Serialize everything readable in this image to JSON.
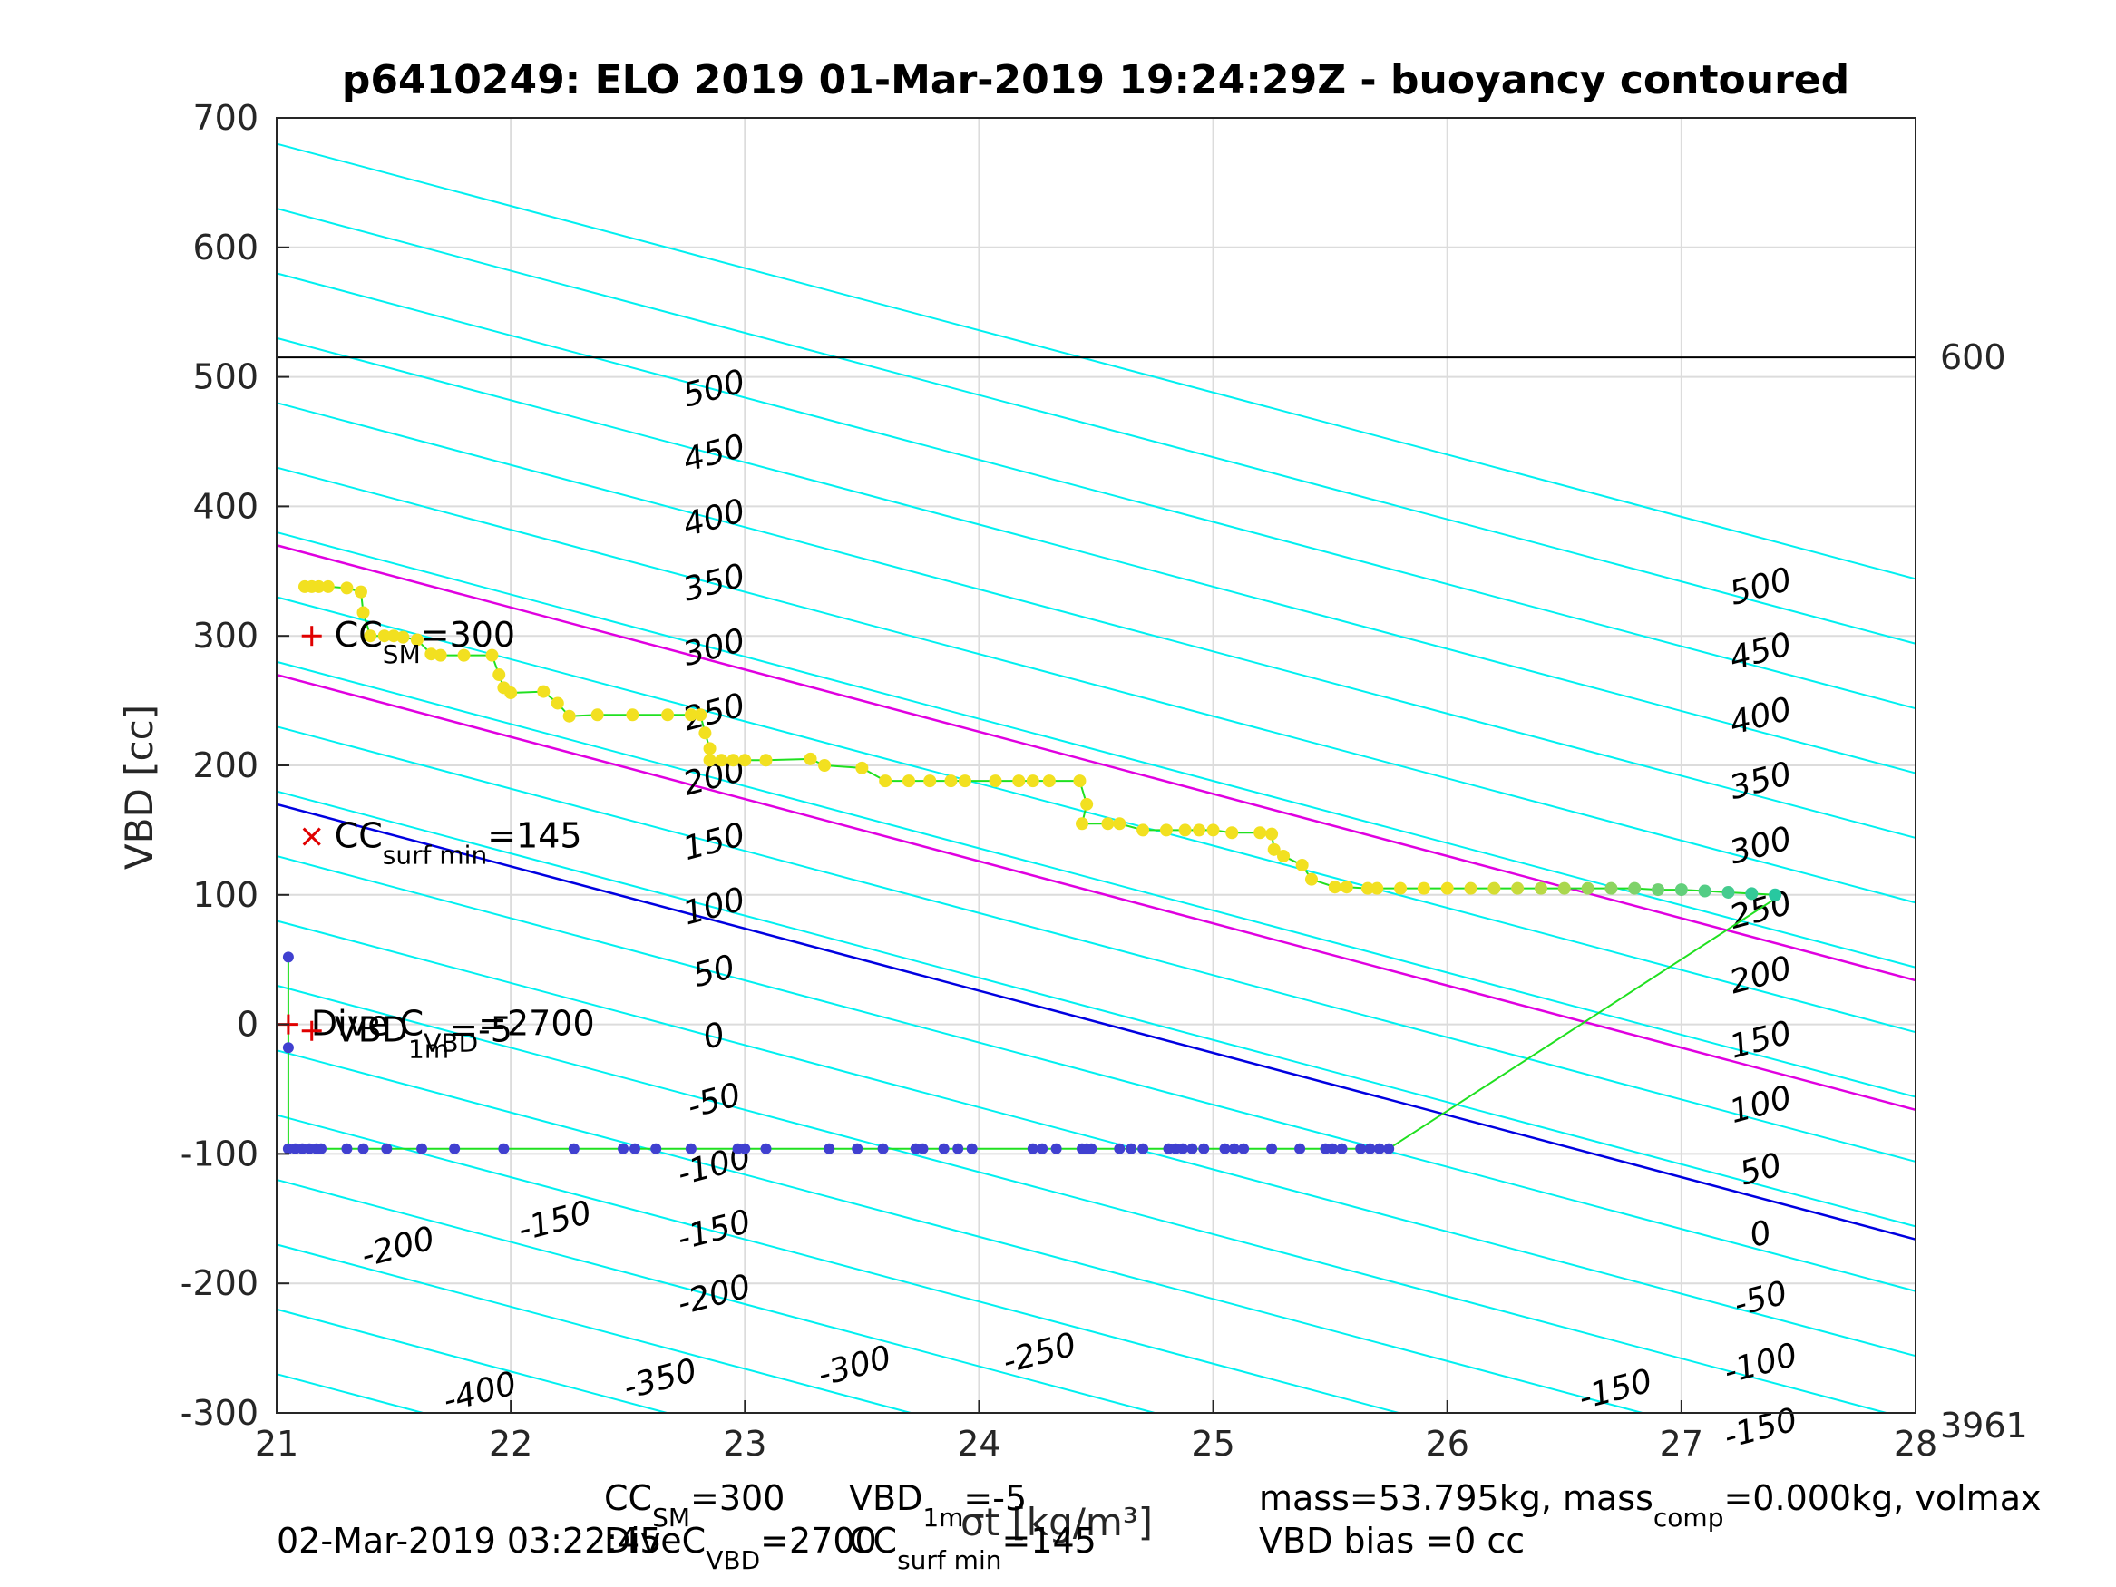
{
  "chart_data": {
    "type": "scatter",
    "title": "p6410249: ELO 2019 01-Mar-2019 19:24:29Z - buoyancy contoured",
    "xlabel": "σt [kg/m³]",
    "ylabel": "VBD [cc]",
    "xlim": [
      21,
      28
    ],
    "ylim": [
      -300,
      700
    ],
    "xticks": [
      21,
      22,
      23,
      24,
      25,
      26,
      27,
      28
    ],
    "yticks": [
      -300,
      -200,
      -100,
      0,
      100,
      200,
      300,
      400,
      500,
      600,
      700
    ],
    "grid": true,
    "right_labels": {
      "top": "600",
      "bottom": "3961"
    },
    "reference_line": {
      "vbd": 515
    },
    "buoyancy_contours": {
      "slope_cc_per_sigma": -48,
      "levels": [
        -400,
        -350,
        -300,
        -250,
        -200,
        -150,
        -100,
        -50,
        0,
        50,
        100,
        150,
        200,
        250,
        300,
        350,
        400,
        450,
        500
      ],
      "special_levels": {
        "0": "blue",
        "150": "magenta",
        "250": "magenta"
      },
      "intercepts_at_21": [
        -420,
        -370,
        -320,
        -270,
        -220,
        -170,
        -120,
        -70,
        -20,
        30,
        80,
        130,
        180,
        230,
        280,
        330,
        380,
        430,
        480,
        530,
        580,
        630,
        680
      ],
      "labels_left": [
        "500",
        "450",
        "400",
        "350",
        "300",
        "250",
        "200",
        "150",
        "100",
        "50",
        "0",
        "-50",
        "-100",
        "-150",
        "-200"
      ],
      "labels_right": [
        "500",
        "450",
        "400",
        "350",
        "300",
        "250",
        "200",
        "150",
        "100",
        "50",
        "0",
        "-50",
        "-100",
        "-150"
      ],
      "labels_bottom": [
        "-400",
        "-350",
        "-300",
        "-250"
      ]
    },
    "series": [
      {
        "name": "dive",
        "color": "#4040d0",
        "points": [
          [
            21.05,
            52
          ],
          [
            21.05,
            -18
          ],
          [
            21.05,
            -96
          ],
          [
            21.08,
            -96
          ],
          [
            21.11,
            -96
          ],
          [
            21.14,
            -96
          ],
          [
            21.17,
            -96
          ],
          [
            21.19,
            -96
          ],
          [
            21.3,
            -96
          ],
          [
            21.37,
            -96
          ],
          [
            21.47,
            -96
          ],
          [
            21.62,
            -96
          ],
          [
            21.76,
            -96
          ],
          [
            21.97,
            -96
          ],
          [
            22.27,
            -96
          ],
          [
            22.48,
            -96
          ],
          [
            22.53,
            -96
          ],
          [
            22.62,
            -96
          ],
          [
            22.77,
            -96
          ],
          [
            22.97,
            -96
          ],
          [
            23.0,
            -96
          ],
          [
            23.09,
            -96
          ],
          [
            23.36,
            -96
          ],
          [
            23.48,
            -96
          ],
          [
            23.59,
            -96
          ],
          [
            23.73,
            -96
          ],
          [
            23.76,
            -96
          ],
          [
            23.85,
            -96
          ],
          [
            23.91,
            -96
          ],
          [
            23.97,
            -96
          ],
          [
            24.23,
            -96
          ],
          [
            24.27,
            -96
          ],
          [
            24.33,
            -96
          ],
          [
            24.44,
            -96
          ],
          [
            24.46,
            -96
          ],
          [
            24.48,
            -96
          ],
          [
            24.6,
            -96
          ],
          [
            24.65,
            -96
          ],
          [
            24.7,
            -96
          ],
          [
            24.81,
            -96
          ],
          [
            24.84,
            -96
          ],
          [
            24.87,
            -96
          ],
          [
            24.91,
            -96
          ],
          [
            24.96,
            -96
          ],
          [
            25.05,
            -96
          ],
          [
            25.09,
            -96
          ],
          [
            25.13,
            -96
          ],
          [
            25.25,
            -96
          ],
          [
            25.37,
            -96
          ],
          [
            25.48,
            -96
          ],
          [
            25.51,
            -96
          ],
          [
            25.55,
            -96
          ],
          [
            25.63,
            -96
          ],
          [
            25.67,
            -96
          ],
          [
            25.71,
            -96
          ],
          [
            25.75,
            -96
          ]
        ]
      },
      {
        "name": "climb",
        "color": "#f2e020",
        "points": [
          [
            21.12,
            338
          ],
          [
            21.15,
            338
          ],
          [
            21.18,
            338
          ],
          [
            21.22,
            338
          ],
          [
            21.3,
            337
          ],
          [
            21.36,
            334
          ],
          [
            21.37,
            318
          ],
          [
            21.4,
            300
          ],
          [
            21.46,
            300
          ],
          [
            21.5,
            300
          ],
          [
            21.54,
            299
          ],
          [
            21.6,
            297
          ],
          [
            21.66,
            286
          ],
          [
            21.7,
            285
          ],
          [
            21.8,
            285
          ],
          [
            21.92,
            285
          ],
          [
            21.95,
            270
          ],
          [
            21.97,
            260
          ],
          [
            22.0,
            256
          ],
          [
            22.14,
            257
          ],
          [
            22.2,
            248
          ],
          [
            22.25,
            238
          ],
          [
            22.37,
            239
          ],
          [
            22.52,
            239
          ],
          [
            22.67,
            239
          ],
          [
            22.77,
            239
          ],
          [
            22.81,
            239
          ],
          [
            22.83,
            225
          ],
          [
            22.85,
            213
          ],
          [
            22.85,
            204
          ],
          [
            22.9,
            204
          ],
          [
            22.95,
            204
          ],
          [
            23.0,
            204
          ],
          [
            23.09,
            204
          ],
          [
            23.28,
            205
          ],
          [
            23.34,
            200
          ],
          [
            23.5,
            198
          ],
          [
            23.6,
            188
          ],
          [
            23.7,
            188
          ],
          [
            23.79,
            188
          ],
          [
            23.88,
            188
          ],
          [
            23.94,
            188
          ],
          [
            24.07,
            188
          ],
          [
            24.17,
            188
          ],
          [
            24.23,
            188
          ],
          [
            24.3,
            188
          ],
          [
            24.43,
            188
          ],
          [
            24.46,
            170
          ],
          [
            24.44,
            155
          ],
          [
            24.55,
            155
          ],
          [
            24.6,
            155
          ],
          [
            24.7,
            150
          ],
          [
            24.8,
            150
          ],
          [
            24.88,
            150
          ],
          [
            24.94,
            150
          ],
          [
            25.0,
            150
          ],
          [
            25.08,
            148
          ],
          [
            25.2,
            148
          ],
          [
            25.25,
            147
          ],
          [
            25.26,
            135
          ],
          [
            25.3,
            130
          ],
          [
            25.38,
            123
          ],
          [
            25.42,
            112
          ],
          [
            25.52,
            106
          ],
          [
            25.57,
            106
          ],
          [
            25.66,
            105
          ],
          [
            25.7,
            105
          ],
          [
            25.8,
            105
          ],
          [
            25.9,
            105
          ],
          [
            26.0,
            105
          ],
          [
            26.1,
            105
          ],
          [
            26.2,
            105
          ],
          [
            26.3,
            105
          ],
          [
            26.4,
            105
          ],
          [
            26.5,
            105
          ],
          [
            26.6,
            105
          ],
          [
            26.7,
            105
          ],
          [
            26.8,
            105
          ],
          [
            26.9,
            104
          ],
          [
            27.0,
            104
          ],
          [
            27.1,
            103
          ],
          [
            27.2,
            102
          ],
          [
            27.3,
            101
          ],
          [
            27.4,
            100
          ]
        ]
      }
    ],
    "connector": {
      "from": [
        25.75,
        -96
      ],
      "to": [
        27.4,
        97
      ]
    },
    "markers": [
      {
        "label": "CC",
        "sub": "SM",
        "value": "=300",
        "sigma": 21.15,
        "vbd": 300,
        "symbol": "+"
      },
      {
        "label": "CC",
        "sub": "surf min",
        "value": "=145",
        "sigma": 21.15,
        "vbd": 145,
        "symbol": "x"
      },
      {
        "label": "Dive C",
        "sub": "VBD",
        "value": "=2700",
        "sigma": 21.05,
        "vbd": 0,
        "symbol": "+"
      },
      {
        "label": "VBD",
        "sub": "1m",
        "value": "=-5",
        "sigma": 21.15,
        "vbd": -5,
        "symbol": "+"
      }
    ]
  },
  "footer": {
    "timestamp": "02-Mar-2019 03:22:45",
    "line1_left": "CC",
    "line1_left_sub": "SM",
    "line1_left_val": "=300",
    "line1_mid": "VBD",
    "line1_mid_sub": "1m",
    "line1_mid_val": "=-5",
    "line2_left": "DiveC",
    "line2_left_sub": "VBD",
    "line2_left_val": "=2700",
    "line2_mid": "CC",
    "line2_mid_sub": "surf min",
    "line2_mid_val": "=145",
    "mass_text": "mass=53.795kg, mass",
    "mass_sub": "comp",
    "mass_tail": "=0.000kg, volmax",
    "bias_text": "VBD bias =0 cc"
  },
  "colors": {
    "contour": "#00f0f0",
    "contour_zero": "#0000e0",
    "contour_highlight": "#e000e0",
    "reference_line": "#000000",
    "connector": "#20e020",
    "marker": "#e00000",
    "grid": "#dcdcdc"
  }
}
